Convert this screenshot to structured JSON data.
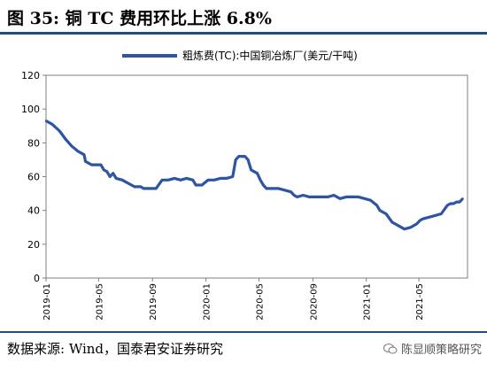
{
  "header": {
    "title": "图 35:  铜 TC 费用环比上涨 6.8%"
  },
  "footer": {
    "source": "数据来源:  Wind，国泰君安证券研究",
    "watermark": "陈显顺策略研究"
  },
  "colors": {
    "series": "#2e55a3",
    "rule": "#1f4e79",
    "axis": "#7f7f7f"
  },
  "icons": {
    "watermark": "wechat-icon"
  },
  "chart_data": {
    "type": "line",
    "title": "",
    "xlabel": "",
    "ylabel": "",
    "ylim": [
      0,
      120
    ],
    "yticks": [
      0,
      20,
      40,
      60,
      80,
      100,
      120
    ],
    "x_range": [
      "2019-01-01",
      "2021-08-20"
    ],
    "xtick_labels": [
      "2019-01",
      "2019-05",
      "2019-09",
      "2020-01",
      "2020-05",
      "2020-09",
      "2021-01",
      "2021-05"
    ],
    "grid": false,
    "legend": "top-center",
    "series": [
      {
        "name": "粗炼费(TC):中国铜冶炼厂(美元/干吨)",
        "points": [
          [
            "2019-01-01",
            93
          ],
          [
            "2019-01-15",
            91
          ],
          [
            "2019-02-01",
            87
          ],
          [
            "2019-02-15",
            82
          ],
          [
            "2019-03-01",
            78
          ],
          [
            "2019-03-15",
            75
          ],
          [
            "2019-03-29",
            73
          ],
          [
            "2019-04-01",
            69
          ],
          [
            "2019-04-15",
            67
          ],
          [
            "2019-04-29",
            67
          ],
          [
            "2019-05-06",
            67
          ],
          [
            "2019-05-13",
            64
          ],
          [
            "2019-05-20",
            63
          ],
          [
            "2019-05-27",
            60
          ],
          [
            "2019-06-03",
            62
          ],
          [
            "2019-06-10",
            59
          ],
          [
            "2019-06-24",
            58
          ],
          [
            "2019-07-08",
            56
          ],
          [
            "2019-07-22",
            54
          ],
          [
            "2019-08-05",
            54
          ],
          [
            "2019-08-12",
            53
          ],
          [
            "2019-08-26",
            53
          ],
          [
            "2019-09-09",
            53
          ],
          [
            "2019-09-23",
            58
          ],
          [
            "2019-10-07",
            58
          ],
          [
            "2019-10-21",
            59
          ],
          [
            "2019-11-04",
            58
          ],
          [
            "2019-11-18",
            59
          ],
          [
            "2019-12-02",
            58
          ],
          [
            "2019-12-09",
            55
          ],
          [
            "2019-12-23",
            55
          ],
          [
            "2020-01-06",
            58
          ],
          [
            "2020-01-20",
            58
          ],
          [
            "2020-02-03",
            59
          ],
          [
            "2020-02-17",
            59
          ],
          [
            "2020-03-02",
            60
          ],
          [
            "2020-03-09",
            70
          ],
          [
            "2020-03-16",
            72
          ],
          [
            "2020-03-30",
            72
          ],
          [
            "2020-04-06",
            70
          ],
          [
            "2020-04-13",
            64
          ],
          [
            "2020-04-20",
            63
          ],
          [
            "2020-04-27",
            62
          ],
          [
            "2020-05-04",
            58
          ],
          [
            "2020-05-11",
            55
          ],
          [
            "2020-05-18",
            53
          ],
          [
            "2020-06-01",
            53
          ],
          [
            "2020-06-15",
            53
          ],
          [
            "2020-06-29",
            52
          ],
          [
            "2020-07-13",
            51
          ],
          [
            "2020-07-20",
            49
          ],
          [
            "2020-07-27",
            48
          ],
          [
            "2020-08-10",
            49
          ],
          [
            "2020-08-24",
            48
          ],
          [
            "2020-09-07",
            48
          ],
          [
            "2020-09-21",
            48
          ],
          [
            "2020-10-05",
            48
          ],
          [
            "2020-10-19",
            49
          ],
          [
            "2020-11-02",
            47
          ],
          [
            "2020-11-16",
            48
          ],
          [
            "2020-11-30",
            48
          ],
          [
            "2020-12-14",
            48
          ],
          [
            "2020-12-28",
            47
          ],
          [
            "2021-01-11",
            46
          ],
          [
            "2021-01-25",
            43
          ],
          [
            "2021-02-01",
            40
          ],
          [
            "2021-02-15",
            38
          ],
          [
            "2021-03-01",
            33
          ],
          [
            "2021-03-15",
            31
          ],
          [
            "2021-03-29",
            29
          ],
          [
            "2021-04-12",
            30
          ],
          [
            "2021-04-26",
            32
          ],
          [
            "2021-05-03",
            34
          ],
          [
            "2021-05-10",
            35
          ],
          [
            "2021-05-24",
            36
          ],
          [
            "2021-06-07",
            37
          ],
          [
            "2021-06-21",
            38
          ],
          [
            "2021-07-05",
            43
          ],
          [
            "2021-07-12",
            44
          ],
          [
            "2021-07-19",
            44
          ],
          [
            "2021-07-26",
            45
          ],
          [
            "2021-08-02",
            45
          ],
          [
            "2021-08-09",
            47
          ]
        ]
      }
    ]
  }
}
